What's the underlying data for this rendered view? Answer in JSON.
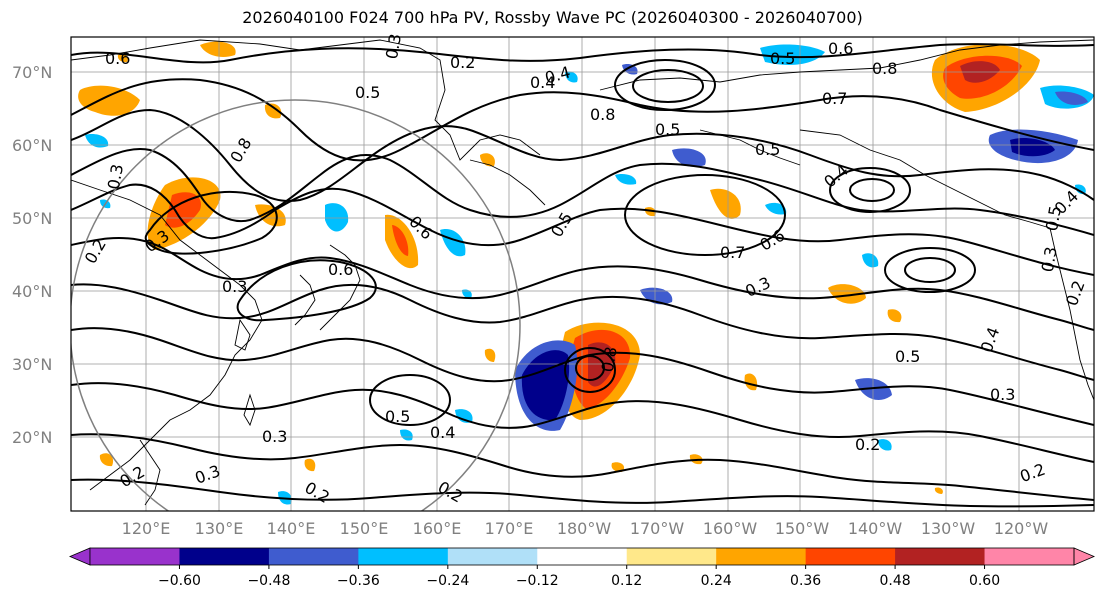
{
  "title": "2026040100 F024 700 hPa PV, Rossby Wave PC (2026040300 - 2026040700)",
  "lat_labels": [
    "70°N",
    "60°N",
    "50°N",
    "40°N",
    "30°N",
    "20°N"
  ],
  "lon_labels": [
    "120°E",
    "130°E",
    "140°E",
    "150°E",
    "160°E",
    "170°E",
    "180°W",
    "170°W",
    "160°W",
    "150°W",
    "140°W",
    "130°W",
    "120°W"
  ],
  "contour_labels": [
    "0.6",
    "0.2",
    "0.3",
    "0.4",
    "0.5",
    "0.6",
    "0.8",
    "0.7",
    "0.5",
    "0.5",
    "0.5",
    "0.5",
    "0.8",
    "0.4",
    "0.3",
    "0.3",
    "0.7",
    "0.6",
    "0.3",
    "0.6",
    "0.5",
    "0.4",
    "0.5",
    "0.8",
    "0.4",
    "0.3",
    "0.2",
    "0.5",
    "0.4",
    "0.3",
    "0.2",
    "0.2",
    "0.3",
    "0.3",
    "0.2",
    "0.2",
    "0.2",
    "0.2",
    "0.3",
    "0.4",
    "0.8",
    "0.6"
  ],
  "colorbar": {
    "labels": [
      "−0.60",
      "−0.48",
      "−0.36",
      "−0.24",
      "−0.12",
      "0.12",
      "0.24",
      "0.36",
      "0.48",
      "0.60"
    ],
    "colors": [
      "#9932cc",
      "#00008b",
      "#3f5ccf",
      "#00bfff",
      "#b0e0f8",
      "#ffffff",
      "#ffe88a",
      "#ffa500",
      "#ff4500",
      "#b22222",
      "#ff85a8"
    ]
  },
  "colors": {
    "grid": "#999999",
    "axis_text": "#808080",
    "circle": "#808080"
  }
}
